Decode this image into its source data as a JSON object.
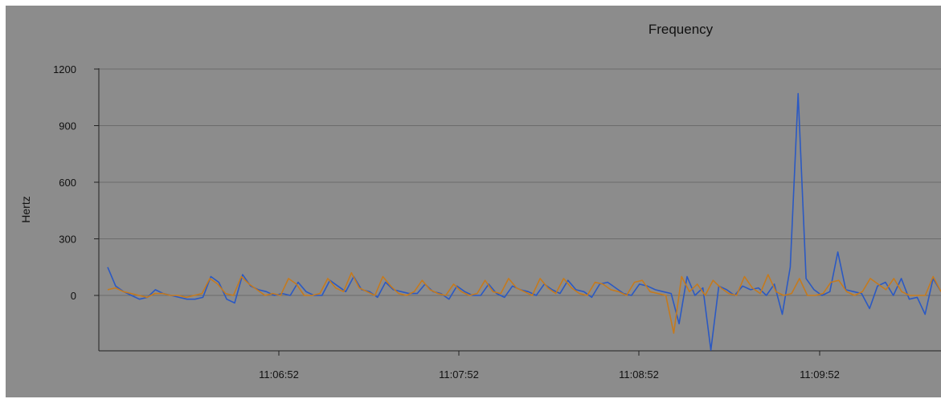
{
  "chart_data": {
    "type": "line",
    "title": "Frequency",
    "xlabel": "",
    "ylabel": "Hertz",
    "ylim": [
      -300,
      1200
    ],
    "y_ticks": [
      "1200",
      "900",
      "600",
      "300",
      "0"
    ],
    "y_tick_values": [
      1200,
      900,
      600,
      300,
      0
    ],
    "x_tick_labels": [
      "11:06:52",
      "11:07:52",
      "11:08:52",
      "11:09:52"
    ],
    "grid": "horizontal",
    "legend": "none",
    "colors": {
      "background": "#8c8c8c",
      "grid": "#6c6c6c",
      "axis": "#222222",
      "series_blue": "#2b59c3",
      "series_orange": "#c57a1d"
    },
    "series": [
      {
        "values": [
          150,
          50,
          20,
          0,
          -20,
          -10,
          30,
          10,
          0,
          -10,
          -20,
          -20,
          -10,
          100,
          70,
          -20,
          -40,
          110,
          50,
          30,
          20,
          0,
          10,
          0,
          70,
          20,
          0,
          0,
          80,
          50,
          20,
          100,
          30,
          20,
          -10,
          70,
          30,
          20,
          10,
          10,
          60,
          20,
          10,
          -20,
          50,
          20,
          0,
          0,
          60,
          10,
          -10,
          50,
          30,
          20,
          0,
          60,
          30,
          10,
          80,
          30,
          20,
          -10,
          60,
          70,
          40,
          10,
          0,
          60,
          50,
          30,
          20,
          10,
          -150,
          100,
          0,
          40,
          -290,
          50,
          30,
          0,
          50,
          30,
          40,
          0,
          60,
          -100,
          150,
          1070,
          90,
          30,
          0,
          20,
          230,
          30,
          20,
          10,
          -70,
          50,
          70,
          0,
          90,
          -20,
          -10,
          -100,
          90,
          20
        ],
        "color": "#2b59c3"
      },
      {
        "values": [
          30,
          40,
          20,
          10,
          0,
          -10,
          10,
          10,
          0,
          0,
          -10,
          0,
          10,
          90,
          60,
          10,
          0,
          100,
          60,
          30,
          0,
          10,
          0,
          90,
          60,
          0,
          0,
          10,
          90,
          40,
          20,
          120,
          40,
          20,
          0,
          100,
          50,
          10,
          0,
          20,
          80,
          30,
          10,
          0,
          60,
          20,
          0,
          10,
          80,
          20,
          10,
          90,
          40,
          20,
          0,
          90,
          40,
          10,
          90,
          40,
          10,
          0,
          70,
          60,
          30,
          20,
          0,
          70,
          80,
          20,
          10,
          0,
          -200,
          100,
          20,
          60,
          0,
          80,
          40,
          10,
          0,
          100,
          40,
          10,
          110,
          20,
          0,
          10,
          90,
          0,
          0,
          10,
          70,
          80,
          20,
          0,
          20,
          90,
          60,
          30,
          90,
          20,
          0,
          0,
          0,
          100,
          20
        ],
        "color": "#c57a1d"
      }
    ]
  }
}
